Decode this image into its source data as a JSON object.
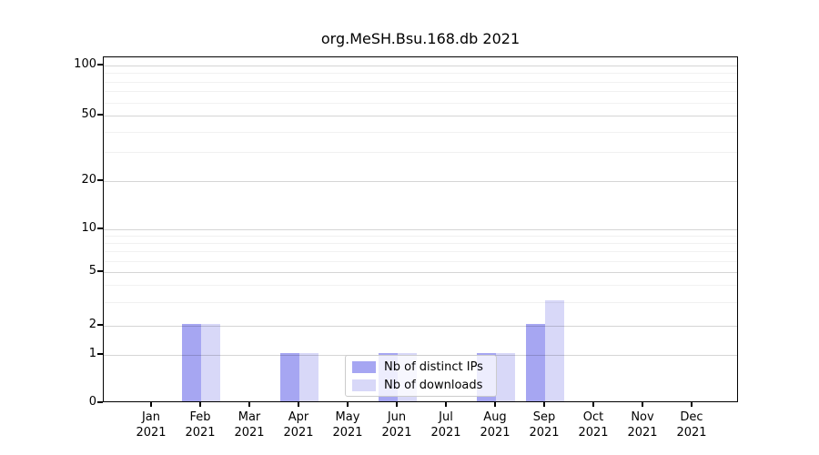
{
  "chart_data": {
    "type": "bar",
    "title": "org.MeSH.Bsu.168.db 2021",
    "categories": [
      "Jan",
      "Feb",
      "Mar",
      "Apr",
      "May",
      "Jun",
      "Jul",
      "Aug",
      "Sep",
      "Oct",
      "Nov",
      "Dec"
    ],
    "category_year": "2021",
    "series": [
      {
        "name": "Nb of distinct IPs",
        "color": "#a6a6f2",
        "values": [
          0,
          2,
          0,
          1,
          0,
          1,
          0,
          1,
          2,
          0,
          0,
          0
        ]
      },
      {
        "name": "Nb of downloads",
        "color": "#d8d8f8",
        "values": [
          0,
          2,
          0,
          1,
          0,
          1,
          0,
          1,
          3,
          0,
          0,
          0
        ]
      }
    ],
    "y_ticks": [
      100,
      50,
      20,
      10,
      5,
      2,
      1,
      0
    ],
    "y_minor_ticks": [
      3,
      4,
      6,
      7,
      8,
      9,
      30,
      40,
      60,
      70,
      80,
      90
    ],
    "y_scale": "log above 1, linear 0-1",
    "ylim": [
      0,
      110
    ],
    "grid": true,
    "legend_position": "lower center",
    "xlabel": "",
    "ylabel": ""
  },
  "colors": {
    "spine": "#000000",
    "grid_major": "#d4d4d4",
    "grid_minor": "#efefef",
    "legend_border": "#cccccc"
  }
}
